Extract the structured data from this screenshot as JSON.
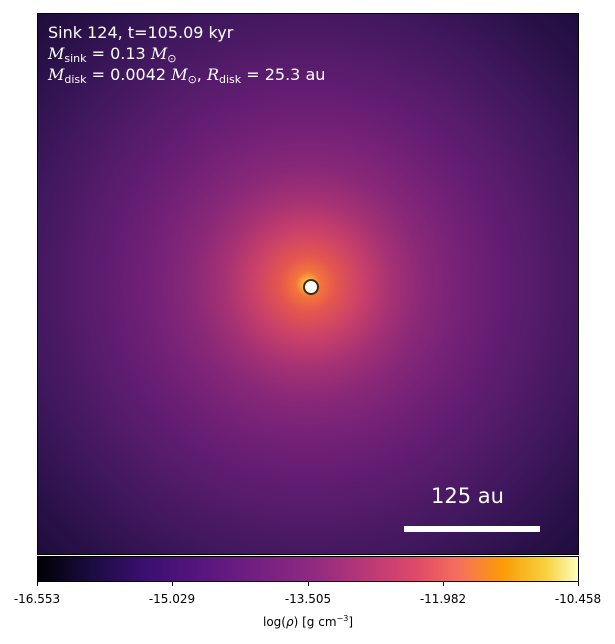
{
  "title_line": "Sink 124, t=105.09 kyr",
  "sink_mass": {
    "symbol": "M",
    "sub": "sink",
    "value": " = 0.13 ",
    "unit": "M",
    "unit_sub": "⊙"
  },
  "disk_line": {
    "m_symbol": "M",
    "m_sub": "disk",
    "m_value": " = 0.0042 ",
    "m_unit": "M",
    "m_unit_sub": "⊙",
    "sep": ", ",
    "r_symbol": "R",
    "r_sub": "disk",
    "r_value": " = 25.3 au"
  },
  "scale_bar": {
    "label": "125 au"
  },
  "colorbar": {
    "colormap": "inferno",
    "ticks": [
      "-16.553",
      "-15.029",
      "-13.505",
      "-11.982",
      "-10.458"
    ],
    "label_prefix": "log(",
    "label_rho": "ρ",
    "label_suffix": ") [g cm",
    "label_exp": "−3",
    "label_end": "]"
  }
}
